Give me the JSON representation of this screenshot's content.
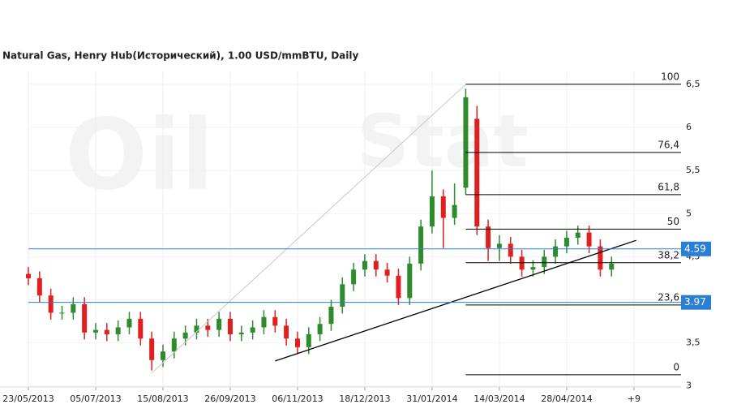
{
  "chart_data": {
    "type": "candlestick",
    "title": "Natural Gas, Henry Hub(Исторический), 1.00 USD/mmBTU, Daily",
    "watermark": [
      "Oil",
      "Stat"
    ],
    "x": [
      0,
      5,
      10,
      15,
      20,
      25,
      30,
      35,
      40,
      45,
      50,
      55,
      60,
      65,
      70,
      75,
      80,
      85,
      90,
      95,
      100,
      105,
      110,
      115,
      120,
      125,
      130,
      135,
      140,
      145,
      150,
      155,
      160,
      165,
      170,
      175,
      180,
      185,
      190,
      195,
      200,
      205,
      210,
      215,
      220,
      225,
      230,
      235,
      240,
      245,
      250,
      255,
      260
    ],
    "open": [
      4.3,
      4.25,
      4.05,
      3.85,
      3.85,
      3.95,
      3.62,
      3.65,
      3.6,
      3.68,
      3.78,
      3.55,
      3.3,
      3.4,
      3.55,
      3.62,
      3.7,
      3.65,
      3.78,
      3.6,
      3.62,
      3.68,
      3.8,
      3.7,
      3.55,
      3.45,
      3.6,
      3.72,
      3.92,
      4.18,
      4.35,
      4.45,
      4.35,
      4.28,
      4.02,
      4.42,
      4.85,
      5.2,
      4.95,
      5.3,
      6.1,
      4.85,
      4.6,
      4.65,
      4.5,
      4.35,
      4.38,
      4.5,
      4.62,
      4.72,
      4.78,
      4.62,
      4.35
    ],
    "high": [
      4.38,
      4.33,
      4.13,
      3.93,
      4.03,
      4.03,
      3.73,
      3.73,
      3.76,
      3.86,
      3.86,
      3.63,
      3.48,
      3.63,
      3.7,
      3.78,
      3.78,
      3.86,
      3.86,
      3.7,
      3.76,
      3.88,
      3.88,
      3.78,
      3.63,
      3.68,
      3.8,
      4.0,
      4.26,
      4.43,
      4.53,
      4.53,
      4.43,
      4.36,
      4.5,
      4.93,
      5.5,
      5.28,
      5.35,
      6.45,
      6.25,
      4.93,
      4.75,
      4.73,
      4.58,
      4.46,
      4.58,
      4.7,
      4.8,
      4.86,
      4.86,
      4.7,
      4.5
    ],
    "low": [
      4.17,
      3.97,
      3.77,
      3.77,
      3.77,
      3.54,
      3.54,
      3.52,
      3.52,
      3.6,
      3.47,
      3.18,
      3.22,
      3.32,
      3.47,
      3.54,
      3.57,
      3.57,
      3.52,
      3.52,
      3.54,
      3.6,
      3.62,
      3.47,
      3.37,
      3.37,
      3.52,
      3.64,
      3.84,
      4.1,
      4.27,
      4.27,
      4.2,
      3.94,
      3.94,
      4.34,
      4.77,
      4.6,
      4.87,
      5.22,
      4.75,
      4.45,
      4.45,
      4.42,
      4.27,
      4.27,
      4.3,
      4.42,
      4.54,
      4.64,
      4.54,
      4.27,
      4.27
    ],
    "close": [
      4.25,
      4.05,
      3.85,
      3.85,
      3.95,
      3.62,
      3.65,
      3.6,
      3.68,
      3.78,
      3.55,
      3.3,
      3.4,
      3.55,
      3.62,
      3.7,
      3.65,
      3.78,
      3.6,
      3.62,
      3.68,
      3.8,
      3.7,
      3.55,
      3.45,
      3.6,
      3.72,
      3.92,
      4.18,
      4.35,
      4.45,
      4.35,
      4.28,
      4.02,
      4.42,
      4.85,
      5.2,
      4.95,
      5.1,
      6.35,
      4.85,
      4.6,
      4.65,
      4.5,
      4.35,
      4.38,
      4.5,
      4.62,
      4.72,
      4.78,
      4.62,
      4.35,
      4.42
    ],
    "up_color": "#2e8b2e",
    "down_color": "#e02020",
    "xlim": [
      0,
      291
    ],
    "ylim": [
      2.95,
      6.65
    ],
    "xticks": [
      {
        "value": 0,
        "label": "23/05/2013"
      },
      {
        "value": 30,
        "label": "05/07/2013"
      },
      {
        "value": 60,
        "label": "15/08/2013"
      },
      {
        "value": 90,
        "label": "26/09/2013"
      },
      {
        "value": 120,
        "label": "06/11/2013"
      },
      {
        "value": 150,
        "label": "18/12/2013"
      },
      {
        "value": 180,
        "label": "31/01/2014"
      },
      {
        "value": 210,
        "label": "14/03/2014"
      },
      {
        "value": 240,
        "label": "28/04/2014"
      },
      {
        "value": 270,
        "label": "+9"
      }
    ],
    "yticks": [
      3,
      {
        "value": 3.5,
        "label": "3,5"
      },
      4,
      {
        "value": 4.5,
        "label": "4,5"
      },
      5,
      {
        "value": 5.5,
        "label": "5,5"
      },
      6,
      {
        "value": 6.5,
        "label": "6,5"
      }
    ],
    "grid": true,
    "hlines": [
      4.59,
      3.97
    ],
    "hline_color": "#2a7fd4",
    "fibonacci": {
      "x_start": 195,
      "levels": [
        {
          "label": "100",
          "price": 6.5
        },
        {
          "label": "76,4",
          "price": 5.71
        },
        {
          "label": "61,8",
          "price": 5.22
        },
        {
          "label": "50",
          "price": 4.82
        },
        {
          "label": "38,2",
          "price": 4.43
        },
        {
          "label": "23,6",
          "price": 3.94
        },
        {
          "label": "0",
          "price": 3.13
        }
      ]
    },
    "trendlines": [
      {
        "x": [
          110,
          271
        ],
        "y": [
          3.29,
          4.69
        ],
        "color": "#000000"
      },
      {
        "x": [
          55,
          195
        ],
        "y": [
          3.15,
          6.5
        ],
        "color": "#c8c8c8"
      }
    ]
  }
}
